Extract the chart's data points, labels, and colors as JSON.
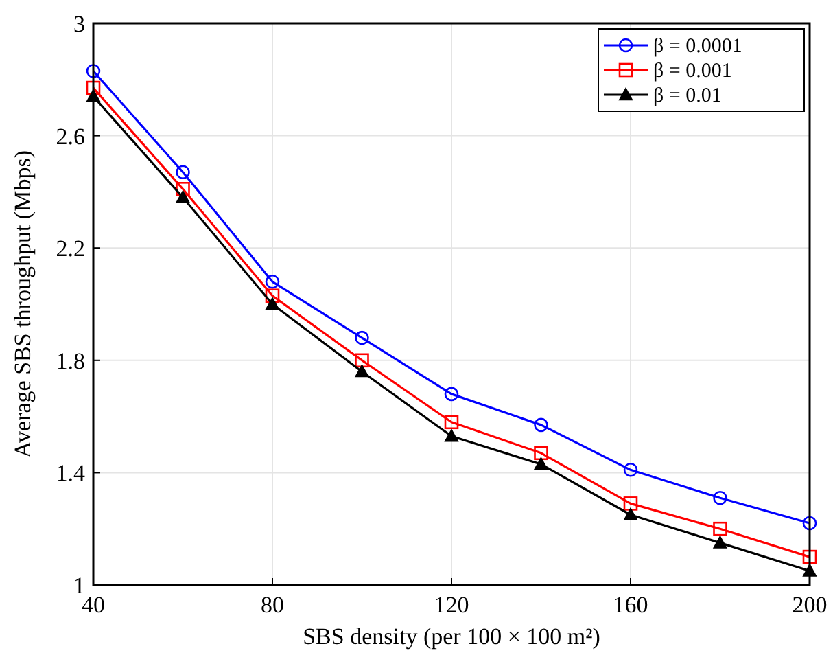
{
  "chart_data": {
    "type": "line",
    "xlabel": "SBS density (per 100 × 100 m²)",
    "ylabel": "Average SBS throughput (Mbps)",
    "x": [
      40,
      60,
      80,
      100,
      120,
      140,
      160,
      180,
      200
    ],
    "series": [
      {
        "name": "β = 0.0001",
        "color": "#0000ff",
        "marker": "circle",
        "values": [
          2.83,
          2.47,
          2.08,
          1.88,
          1.68,
          1.57,
          1.41,
          1.31,
          1.22
        ]
      },
      {
        "name": "β = 0.001",
        "color": "#ff0000",
        "marker": "square",
        "values": [
          2.77,
          2.41,
          2.03,
          1.8,
          1.58,
          1.47,
          1.29,
          1.2,
          1.1
        ]
      },
      {
        "name": "β = 0.01",
        "color": "#000000",
        "marker": "triangle",
        "values": [
          2.74,
          2.38,
          2.0,
          1.76,
          1.53,
          1.43,
          1.25,
          1.15,
          1.05
        ]
      }
    ],
    "xlim": [
      40,
      200
    ],
    "xticks": [
      40,
      80,
      120,
      160,
      200
    ],
    "ylim": [
      1,
      3
    ],
    "yticks": [
      1,
      1.4,
      1.8,
      2.2,
      2.6,
      3
    ],
    "grid": true,
    "legend": "top right",
    "line_style": "solid"
  }
}
